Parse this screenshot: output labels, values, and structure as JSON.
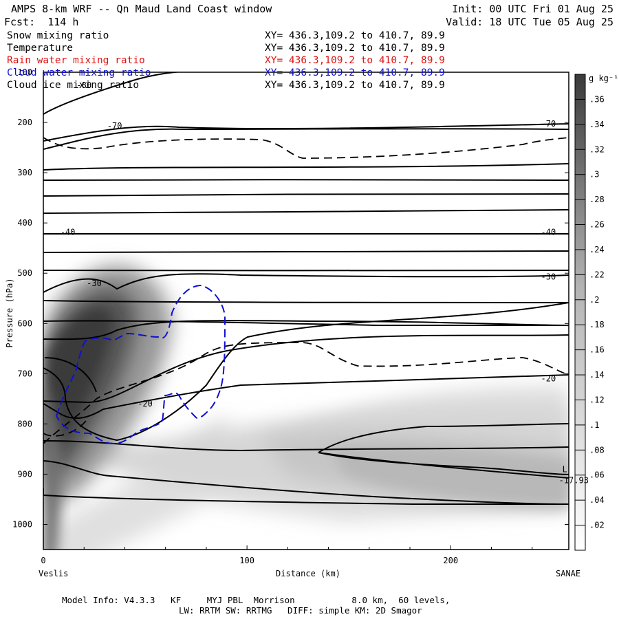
{
  "header": {
    "title": "AMPS 8-km WRF -- Qn Maud Land Coast window",
    "forecast": "Fcst:  114 h",
    "init": "Init: 00 UTC Fri 01 Aug 25",
    "valid": "Valid: 18 UTC Tue 05 Aug 25"
  },
  "fields": [
    {
      "name": "Snow mixing ratio",
      "xy": "XY= 436.3,109.2 to 410.7, 89.9",
      "color": "#000000"
    },
    {
      "name": "Temperature",
      "xy": "XY= 436.3,109.2 to 410.7, 89.9",
      "color": "#000000"
    },
    {
      "name": "Rain water mixing ratio",
      "xy": "XY= 436.3,109.2 to 410.7, 89.9",
      "color": "#e01414"
    },
    {
      "name": "Cloud water mixing ratio",
      "xy": "XY= 436.3,109.2 to 410.7, 89.9",
      "color": "#1010d0"
    },
    {
      "name": "Cloud ice mixing ratio",
      "xy": "XY= 436.3,109.2 to 410.7, 89.9",
      "color": "#000000"
    }
  ],
  "footer": {
    "line1": "Model Info: V4.3.3   KF     MYJ PBL  Morrison           8.0 km,  60 levels,",
    "line2": "LW: RRTM SW: RRTMG   DIFF: simple KM: 2D Smagor"
  },
  "chart_data": {
    "type": "contour",
    "xlabel": "Distance (km)",
    "ylabel": "Pressure (hPa)",
    "xlim": [
      0,
      258
    ],
    "ylim": [
      1050,
      100
    ],
    "xticks": [
      0,
      100,
      200
    ],
    "yticks": [
      100,
      200,
      300,
      400,
      500,
      600,
      700,
      800,
      900,
      1000
    ],
    "endpoint_labels": {
      "left": "Veslis",
      "right": "SANAE"
    },
    "colorbar": {
      "unit": "g kg⁻¹",
      "levels": [
        ".02",
        ".04",
        ".06",
        ".08",
        ".1",
        ".12",
        ".14",
        ".16",
        ".18",
        ".2",
        ".22",
        ".24",
        ".26",
        ".28",
        ".3",
        ".32",
        ".34",
        ".36"
      ]
    },
    "temperature_contour_labels": [
      {
        "text": "-80",
        "x": 20,
        "p": 126
      },
      {
        "text": "-70",
        "x": 35,
        "p": 207
      },
      {
        "text": "-70",
        "x": 248,
        "p": 203
      },
      {
        "text": "-40",
        "x": 12,
        "p": 418
      },
      {
        "text": "-40",
        "x": 248,
        "p": 418
      },
      {
        "text": "-30",
        "x": 25,
        "p": 520
      },
      {
        "text": "-30",
        "x": 248,
        "p": 507
      },
      {
        "text": "-20",
        "x": 50,
        "p": 760
      },
      {
        "text": "-20",
        "x": 248,
        "p": 710
      }
    ],
    "minimum_marker": {
      "symbol": "L",
      "value": "-17.93",
      "x": 243,
      "p": 910
    }
  }
}
